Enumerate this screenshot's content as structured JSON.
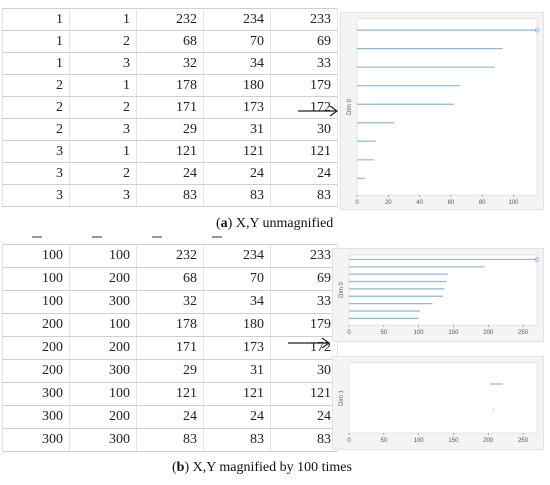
{
  "table_a": {
    "rows": [
      [
        "1",
        "1",
        "232",
        "234",
        "233"
      ],
      [
        "1",
        "2",
        "68",
        "70",
        "69"
      ],
      [
        "1",
        "3",
        "32",
        "34",
        "33"
      ],
      [
        "2",
        "1",
        "178",
        "180",
        "179"
      ],
      [
        "2",
        "2",
        "171",
        "173",
        "172"
      ],
      [
        "2",
        "3",
        "29",
        "31",
        "30"
      ],
      [
        "3",
        "1",
        "121",
        "121",
        "121"
      ],
      [
        "3",
        "2",
        "24",
        "24",
        "24"
      ],
      [
        "3",
        "3",
        "83",
        "83",
        "83"
      ]
    ]
  },
  "table_b": {
    "rows": [
      [
        "100",
        "100",
        "232",
        "234",
        "233"
      ],
      [
        "100",
        "200",
        "68",
        "70",
        "69"
      ],
      [
        "100",
        "300",
        "32",
        "34",
        "33"
      ],
      [
        "200",
        "100",
        "178",
        "180",
        "179"
      ],
      [
        "200",
        "200",
        "171",
        "173",
        "172"
      ],
      [
        "200",
        "300",
        "29",
        "31",
        "30"
      ],
      [
        "300",
        "100",
        "121",
        "121",
        "121"
      ],
      [
        "300",
        "200",
        "24",
        "24",
        "24"
      ],
      [
        "300",
        "300",
        "83",
        "83",
        "83"
      ]
    ]
  },
  "caption_a": {
    "letter": "a",
    "text": " X,Y unmagnified"
  },
  "caption_b": {
    "letter": "b",
    "text": " X,Y magnified by 100 times"
  },
  "plot_a": {
    "dim_label": "Dim 0",
    "x_ticks": [
      "0",
      "20",
      "40",
      "60",
      "80",
      "100"
    ],
    "xlim": [
      0,
      115
    ],
    "bar_color": "#8db8d8",
    "bars": [
      115,
      93,
      88,
      66,
      62,
      24,
      12,
      11,
      5
    ]
  },
  "plot_b_top": {
    "dim_label": "Dim 0",
    "x_ticks": [
      "0",
      "50",
      "100",
      "150",
      "200",
      "250"
    ],
    "xlim": [
      0,
      270
    ],
    "bar_color": "#8db8d8",
    "bars": [
      270,
      195,
      142,
      140,
      137,
      135,
      120,
      102,
      100
    ]
  },
  "plot_b_bottom": {
    "dim_label": "Dim 1",
    "x_ticks": [
      "0",
      "50",
      "100",
      "150",
      "200",
      "250"
    ],
    "xlim": [
      0,
      270
    ],
    "bar_color": "#8db8d8"
  }
}
